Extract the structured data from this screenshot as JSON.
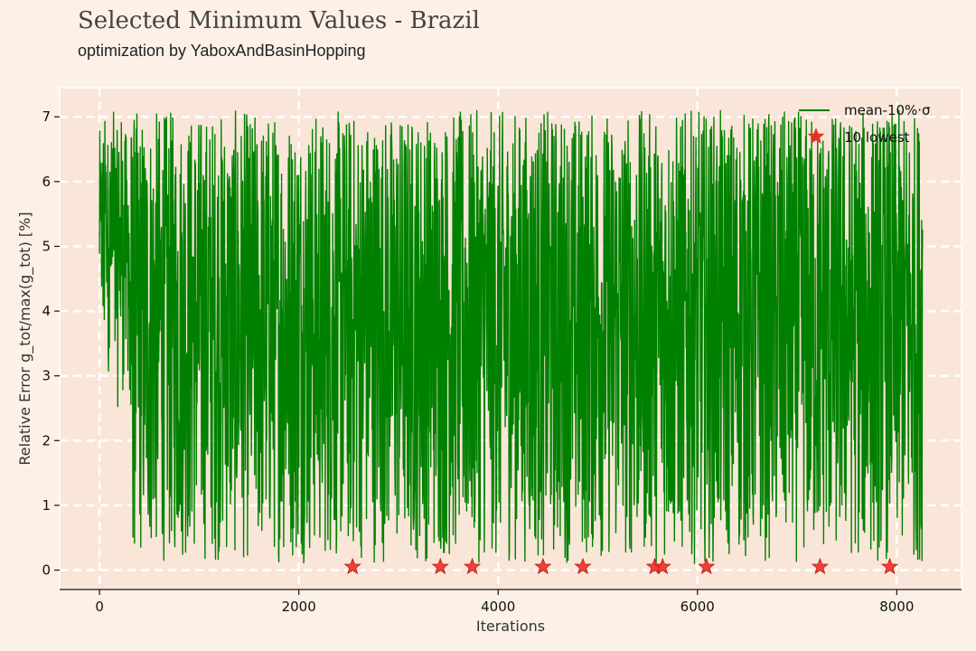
{
  "chart_data": {
    "type": "line",
    "title": "Selected Minimum Values - Brazil",
    "subtitle": "optimization by YaboxAndBasinHopping",
    "xlabel": "Iterations",
    "ylabel": "Relative Error g_tot/max(g_tot) [%]",
    "xlim": [
      -400,
      8650
    ],
    "ylim": [
      -0.3,
      7.45
    ],
    "x_ticks": [
      0,
      2000,
      4000,
      6000,
      8000
    ],
    "y_ticks": [
      0,
      1,
      2,
      3,
      4,
      5,
      6,
      7
    ],
    "grid": true,
    "legend_position": "top-right",
    "series": [
      {
        "name": "mean-10%·σ",
        "kind": "line",
        "color": "#008000",
        "x_range": [
          0,
          8260
        ],
        "y_range": [
          0.1,
          7.1
        ],
        "n_points": 8260
      },
      {
        "name": "10 lowest",
        "kind": "scatter",
        "color": "#e8302a",
        "marker": "star",
        "points": [
          {
            "x": 2540,
            "y": 0.05
          },
          {
            "x": 3420,
            "y": 0.05
          },
          {
            "x": 3740,
            "y": 0.05
          },
          {
            "x": 4450,
            "y": 0.05
          },
          {
            "x": 4850,
            "y": 0.05
          },
          {
            "x": 5570,
            "y": 0.05
          },
          {
            "x": 5650,
            "y": 0.05
          },
          {
            "x": 6090,
            "y": 0.05
          },
          {
            "x": 7230,
            "y": 0.05
          },
          {
            "x": 7930,
            "y": 0.05
          }
        ]
      }
    ]
  }
}
